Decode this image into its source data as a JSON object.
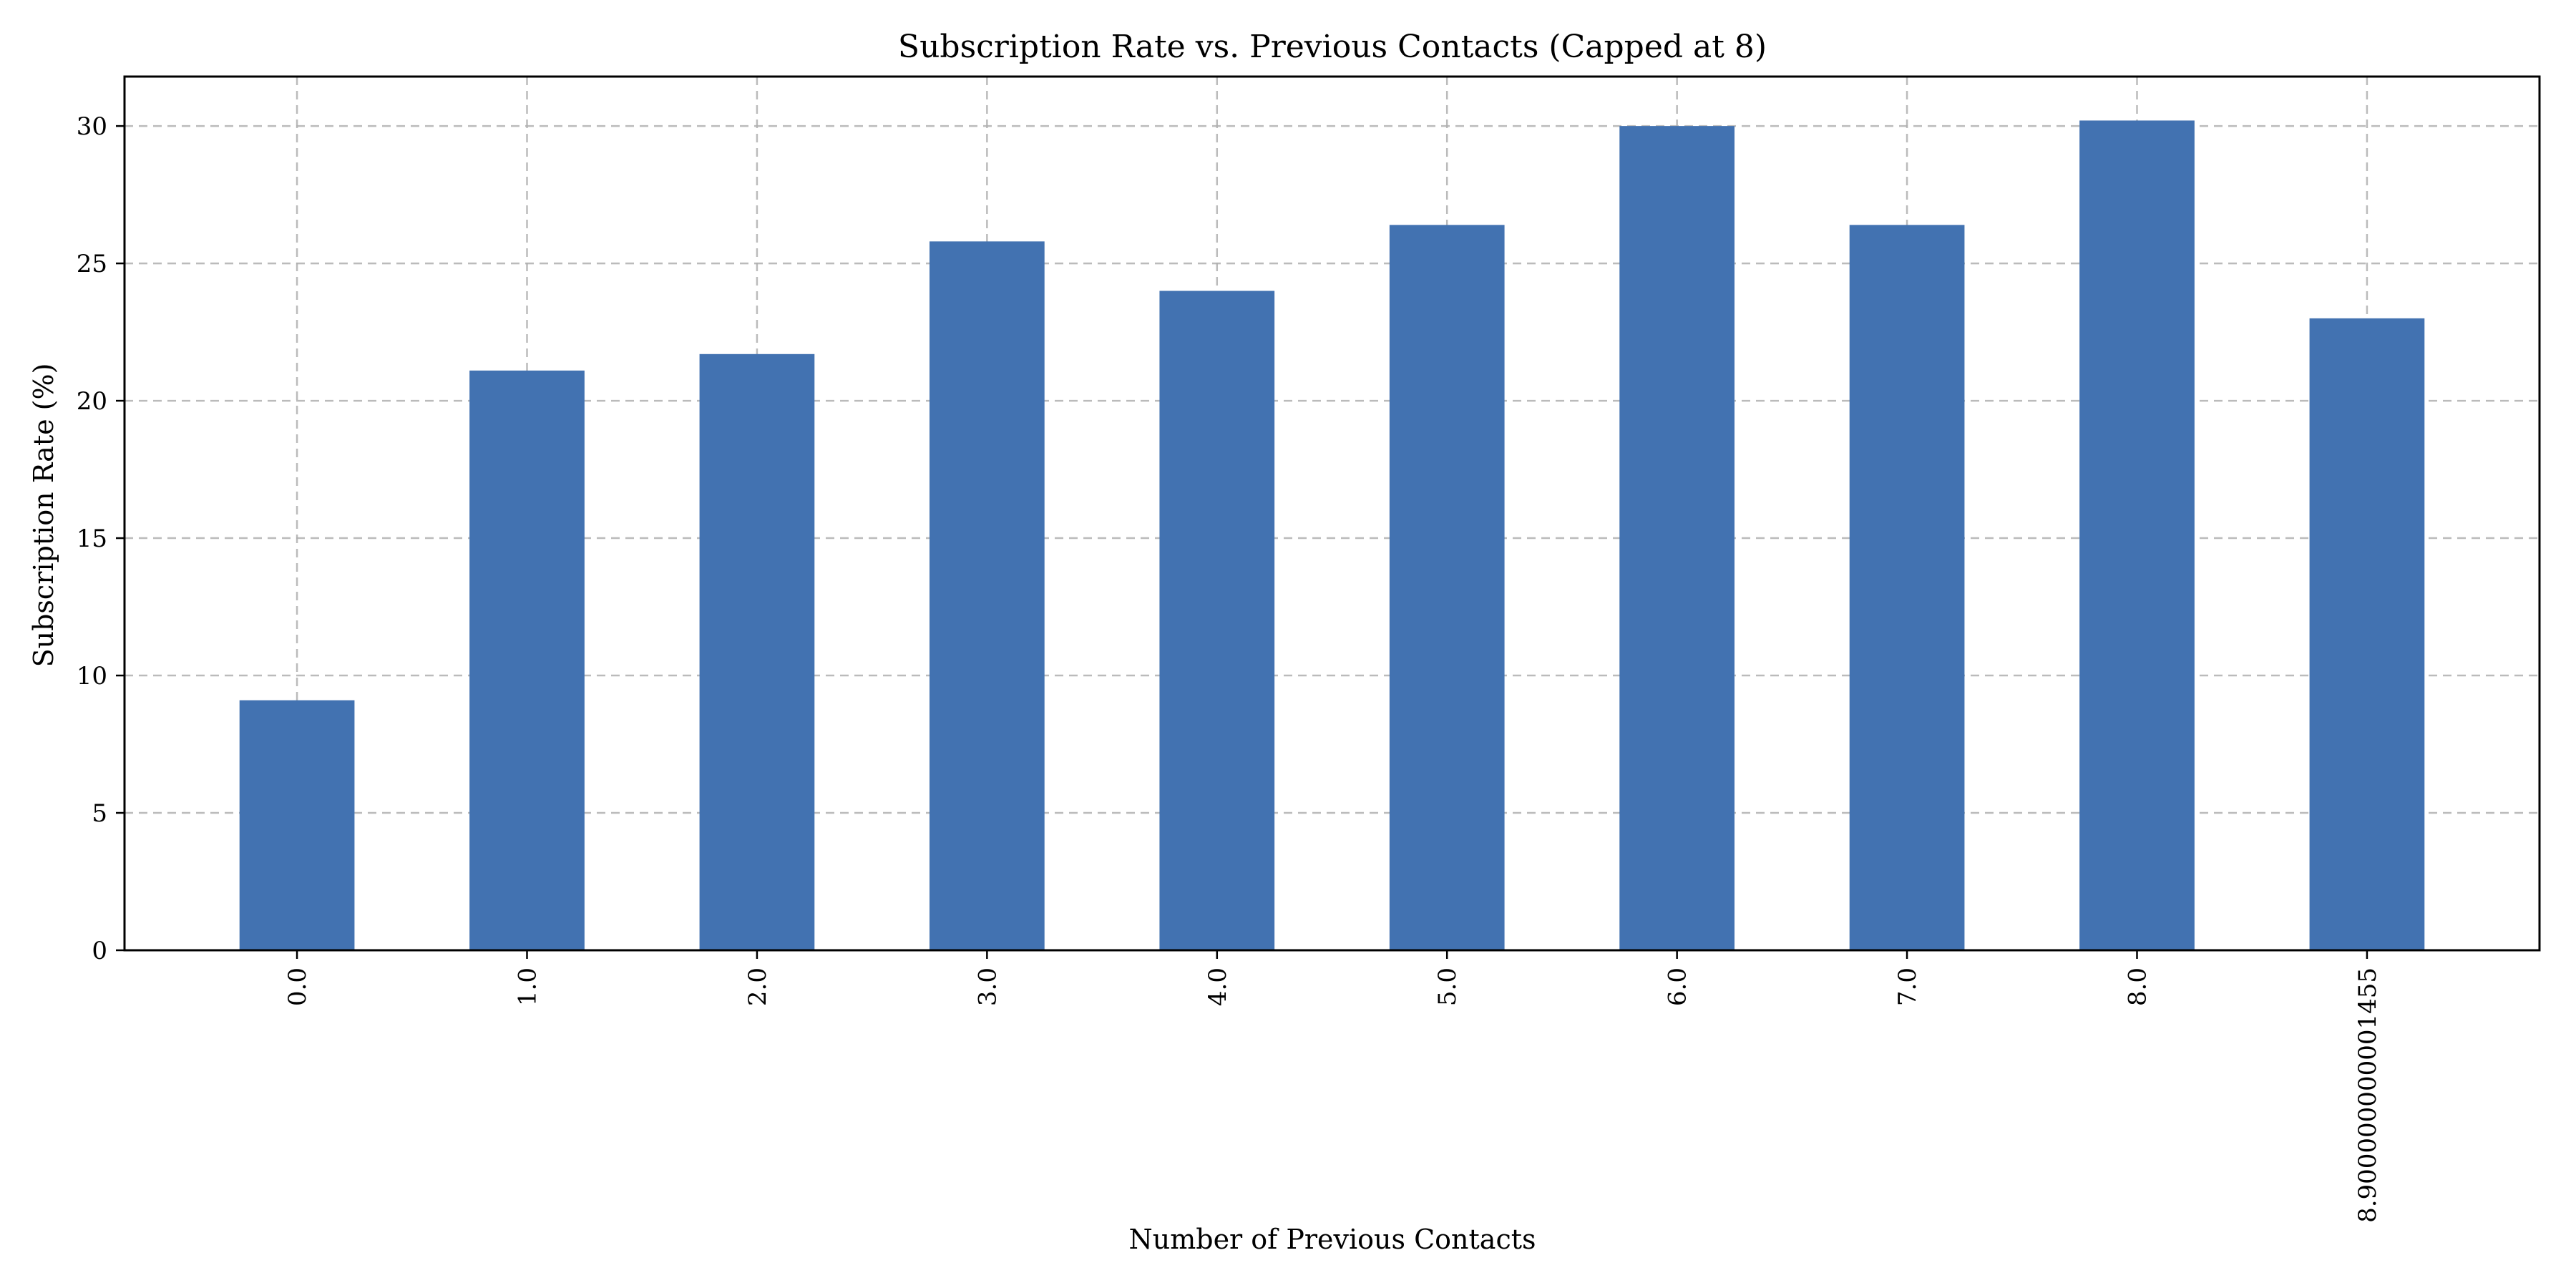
{
  "chart_data": {
    "type": "bar",
    "title": "Subscription Rate vs. Previous Contacts (Capped at 8)",
    "xlabel": "Number of Previous Contacts",
    "ylabel": "Subscription Rate (%)",
    "categories": [
      "0.0",
      "1.0",
      "2.0",
      "3.0",
      "4.0",
      "5.0",
      "6.0",
      "7.0",
      "8.0",
      "8.900000000001455"
    ],
    "values": [
      9.1,
      21.1,
      21.7,
      25.8,
      24.0,
      26.4,
      30.0,
      26.4,
      30.2,
      23.0
    ],
    "ylim": [
      0,
      31.8
    ],
    "yticks": [
      "0",
      "5",
      "10",
      "15",
      "20",
      "25",
      "30"
    ],
    "grid": true,
    "bar_color": "#4272b1"
  }
}
